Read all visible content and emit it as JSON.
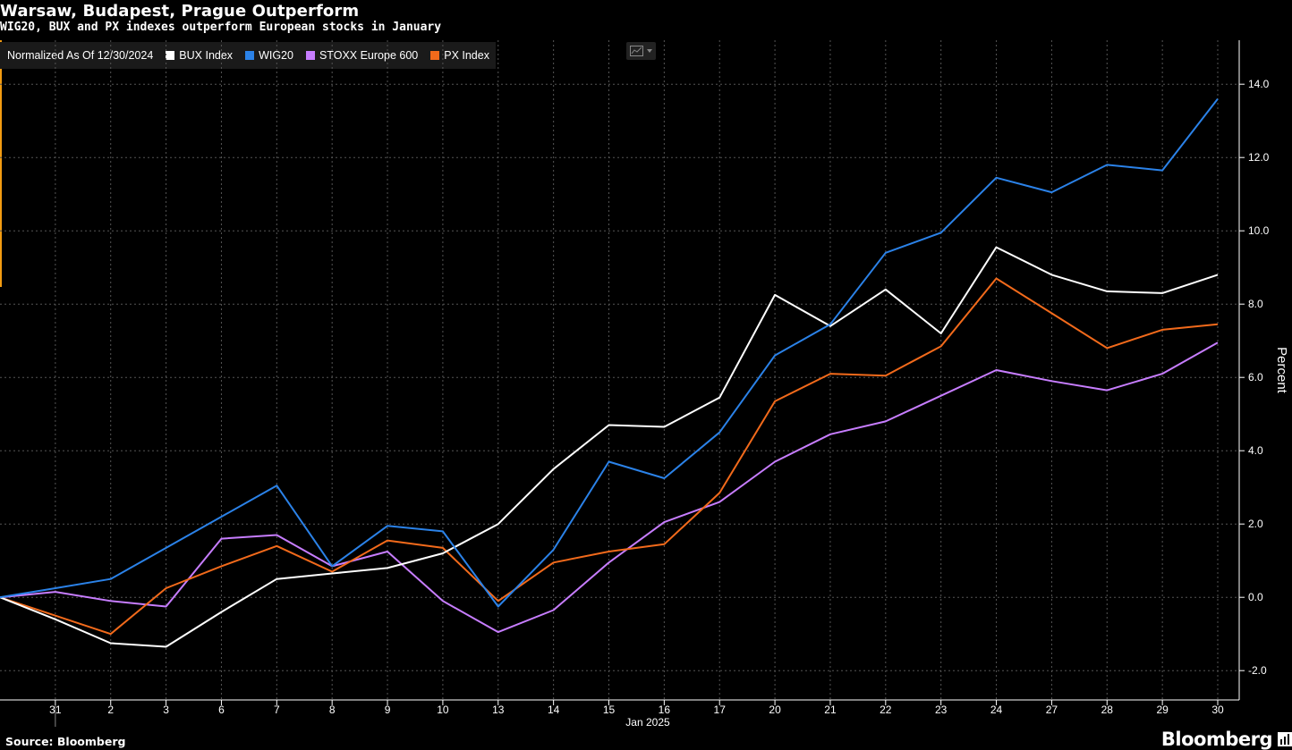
{
  "title": "Warsaw, Budapest, Prague Outperform",
  "subtitle": "WIG20, BUX and PX indexes outperform European stocks in January",
  "legend": {
    "normalized_label": "Normalized As Of 12/30/2024",
    "items": [
      {
        "label": "BUX Index",
        "color": "#ffffff"
      },
      {
        "label": "WIG20",
        "color": "#2b82e8"
      },
      {
        "label": "STOXX Europe 600",
        "color": "#c77dff"
      },
      {
        "label": "PX Index",
        "color": "#f26a1b"
      }
    ]
  },
  "chart_menu": {
    "icon": "line-chart-icon",
    "dropdown_icon": "chevron-down-icon"
  },
  "footer": {
    "source": "Source: Bloomberg",
    "brand": "Bloomberg",
    "brand_icon": "bar-chart-icon"
  },
  "colors": {
    "background": "#000000",
    "grid": "#555555",
    "accent": "#f39c12"
  },
  "chart_data": {
    "type": "line",
    "title": "Warsaw, Budapest, Prague Outperform",
    "subtitle": "WIG20, BUX and PX indexes outperform European stocks in January",
    "xlabel": "Jan 2025",
    "ylabel": "Percent",
    "ylim": [
      -2.8,
      15.2
    ],
    "yticks": [
      -2.0,
      0.0,
      2.0,
      4.0,
      6.0,
      8.0,
      10.0,
      12.0,
      14.0
    ],
    "ytick_labels": [
      "-2.0",
      "0.0",
      "2.0",
      "4.0",
      "6.0",
      "8.0",
      "10.0",
      "12.0",
      "14.0"
    ],
    "x": [
      "30",
      "31",
      "2",
      "3",
      "6",
      "7",
      "8",
      "9",
      "10",
      "13",
      "14",
      "15",
      "16",
      "17",
      "20",
      "21",
      "22",
      "23",
      "24",
      "27",
      "28",
      "29",
      "30"
    ],
    "x_tick_labels": [
      "31",
      "2",
      "3",
      "6",
      "7",
      "8",
      "9",
      "10",
      "13",
      "14",
      "15",
      "16",
      "17",
      "20",
      "21",
      "22",
      "23",
      "24",
      "27",
      "28",
      "29",
      "30"
    ],
    "grid": true,
    "legend_position": "top-left",
    "series": [
      {
        "name": "BUX Index",
        "color": "#ffffff",
        "values": [
          0.0,
          -0.6,
          -1.25,
          -1.35,
          -0.4,
          0.5,
          0.65,
          0.8,
          1.2,
          2.0,
          3.5,
          4.7,
          4.65,
          5.45,
          8.25,
          7.4,
          8.4,
          7.2,
          9.55,
          8.8,
          8.35,
          8.3,
          8.8
        ]
      },
      {
        "name": "WIG20",
        "color": "#2b82e8",
        "values": [
          0.0,
          0.25,
          0.5,
          1.35,
          2.2,
          3.05,
          0.85,
          1.95,
          1.8,
          -0.25,
          1.3,
          3.7,
          3.25,
          4.5,
          6.6,
          7.45,
          9.4,
          9.95,
          11.45,
          11.05,
          11.8,
          11.65,
          13.6
        ]
      },
      {
        "name": "STOXX Europe 600",
        "color": "#c77dff",
        "values": [
          0.0,
          0.15,
          -0.1,
          -0.25,
          1.6,
          1.7,
          0.85,
          1.25,
          -0.1,
          -0.95,
          -0.35,
          0.95,
          2.05,
          2.6,
          3.7,
          4.45,
          4.8,
          5.5,
          6.2,
          5.9,
          5.65,
          6.1,
          6.95
        ]
      },
      {
        "name": "PX Index",
        "color": "#f26a1b",
        "values": [
          0.0,
          -0.5,
          -1.0,
          0.25,
          0.85,
          1.4,
          0.7,
          1.55,
          1.35,
          -0.1,
          0.95,
          1.25,
          1.45,
          2.85,
          5.35,
          6.1,
          6.05,
          6.85,
          8.7,
          7.75,
          6.8,
          7.3,
          7.45
        ]
      }
    ]
  }
}
